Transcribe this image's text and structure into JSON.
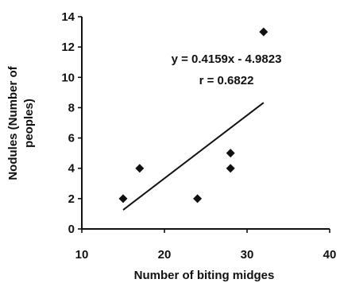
{
  "chart_data": {
    "type": "scatter",
    "title": "",
    "xlabel": "Number of biting midges",
    "ylabel_lines": [
      "Nodules (Number of",
      "peoples)"
    ],
    "xlim": [
      10,
      40
    ],
    "ylim": [
      0,
      14
    ],
    "x_ticks": [
      10,
      20,
      30,
      40
    ],
    "y_ticks": [
      0,
      2,
      4,
      6,
      8,
      10,
      12,
      14
    ],
    "grid": false,
    "legend": "none",
    "points": [
      {
        "x": 15,
        "y": 2
      },
      {
        "x": 17,
        "y": 4
      },
      {
        "x": 24,
        "y": 2
      },
      {
        "x": 28,
        "y": 5
      },
      {
        "x": 28,
        "y": 4
      },
      {
        "x": 32,
        "y": 13
      }
    ],
    "trendline": {
      "slope": 0.4159,
      "intercept": -4.9823,
      "x_start": 15,
      "x_end": 32
    },
    "annotations": [
      "y = 0.4159x - 4.9823",
      "r = 0.6822"
    ],
    "colors": {
      "marks": "#111111"
    }
  }
}
